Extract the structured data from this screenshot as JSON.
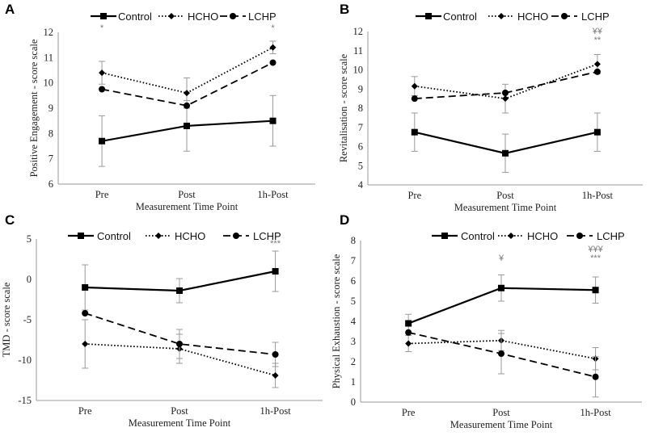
{
  "figure": {
    "panel_labels": [
      "A",
      "B",
      "C",
      "D"
    ]
  },
  "chart_data": [
    {
      "panel": "A",
      "type": "line",
      "categories": [
        "Pre",
        "Post",
        "1h-Post"
      ],
      "xlabel": "Measurement Time Point",
      "ylabel": "Positive Engagement - score scale",
      "ylim": [
        6,
        12
      ],
      "yticks": [
        6,
        7,
        8,
        9,
        10,
        11,
        12
      ],
      "legend": [
        "Control",
        "HCHO",
        "LCHP"
      ],
      "series": [
        {
          "name": "Control",
          "style": "solid",
          "marker": "square",
          "values": [
            7.7,
            8.3,
            8.5
          ],
          "err": [
            1.0,
            1.0,
            1.0
          ]
        },
        {
          "name": "HCHO",
          "style": "dotted",
          "marker": "diamond",
          "values": [
            10.4,
            9.6,
            11.4
          ],
          "err": [
            0.45,
            0.6,
            0.25
          ]
        },
        {
          "name": "LCHP",
          "style": "dashed",
          "marker": "circle",
          "values": [
            9.75,
            9.1,
            10.8
          ],
          "err": [
            0.0,
            0.0,
            0.0
          ]
        }
      ],
      "annotations": [
        {
          "category": "Pre",
          "level": 1,
          "text": "*"
        },
        {
          "category": "1h-Post",
          "level": 1,
          "text": "*"
        }
      ]
    },
    {
      "panel": "B",
      "type": "line",
      "categories": [
        "Pre",
        "Post",
        "1h-Post"
      ],
      "xlabel": "Measurement Time Point",
      "ylabel": "Revitalisation - score scale",
      "ylim": [
        4,
        12
      ],
      "yticks": [
        4,
        5,
        6,
        7,
        8,
        9,
        10,
        11,
        12
      ],
      "legend": [
        "Control",
        "HCHO",
        "LCHP"
      ],
      "series": [
        {
          "name": "Control",
          "style": "solid",
          "marker": "square",
          "values": [
            6.75,
            5.65,
            6.75
          ],
          "err": [
            1.0,
            1.0,
            1.0
          ]
        },
        {
          "name": "HCHO",
          "style": "dotted",
          "marker": "diamond",
          "values": [
            9.15,
            8.5,
            10.3
          ],
          "err": [
            0.5,
            0.75,
            0.5
          ]
        },
        {
          "name": "LCHP",
          "style": "dashed",
          "marker": "circle",
          "values": [
            8.5,
            8.8,
            9.9
          ],
          "err": [
            0.0,
            0.0,
            0.0
          ]
        }
      ],
      "annotations": [
        {
          "category": "1h-Post",
          "level": 2,
          "text": "¥¥"
        },
        {
          "category": "1h-Post",
          "level": 1,
          "text": "**"
        }
      ]
    },
    {
      "panel": "C",
      "type": "line",
      "categories": [
        "Pre",
        "Post",
        "1h-Post"
      ],
      "xlabel": "Measurement Time Point",
      "ylabel": "TMD - score scale",
      "ylim": [
        -15,
        5
      ],
      "yticks": [
        -15,
        -10,
        -5,
        0,
        5
      ],
      "legend": [
        "Control",
        "HCHO",
        "LCHP"
      ],
      "series": [
        {
          "name": "Control",
          "style": "solid",
          "marker": "square",
          "values": [
            -1.0,
            -1.4,
            1.0
          ],
          "err": [
            2.8,
            1.5,
            2.5
          ]
        },
        {
          "name": "HCHO",
          "style": "dotted",
          "marker": "diamond",
          "values": [
            -8.0,
            -8.6,
            -11.9
          ],
          "err": [
            3.0,
            1.8,
            1.5
          ]
        },
        {
          "name": "LCHP",
          "style": "dashed",
          "marker": "circle",
          "values": [
            -4.2,
            -8.0,
            -9.3
          ],
          "err": [
            0.0,
            1.8,
            1.5
          ]
        }
      ],
      "annotations": [
        {
          "category": "1h-Post",
          "level": 1,
          "text": "***"
        }
      ]
    },
    {
      "panel": "D",
      "type": "line",
      "categories": [
        "Pre",
        "Post",
        "1h-Post"
      ],
      "xlabel": "Measurement Time Point",
      "ylabel": "Physical Exhaustion - score scale",
      "ylim": [
        0,
        8
      ],
      "yticks": [
        0,
        1,
        2,
        3,
        4,
        5,
        6,
        7,
        8
      ],
      "legend": [
        "Control",
        "HCHO",
        "LCHP"
      ],
      "series": [
        {
          "name": "Control",
          "style": "solid",
          "marker": "square",
          "values": [
            3.9,
            5.65,
            5.55
          ],
          "err": [
            0.45,
            0.65,
            0.65
          ]
        },
        {
          "name": "HCHO",
          "style": "dotted",
          "marker": "diamond",
          "values": [
            2.9,
            3.05,
            2.15
          ],
          "err": [
            0.4,
            0.5,
            0.55
          ]
        },
        {
          "name": "LCHP",
          "style": "dashed",
          "marker": "circle",
          "values": [
            3.45,
            2.4,
            1.25
          ],
          "err": [
            0.0,
            1.0,
            1.0
          ]
        }
      ],
      "annotations": [
        {
          "category": "Post",
          "level": 1,
          "text": "¥"
        },
        {
          "category": "1h-Post",
          "level": 2,
          "text": "¥¥¥"
        },
        {
          "category": "1h-Post",
          "level": 1,
          "text": "***"
        }
      ]
    }
  ]
}
